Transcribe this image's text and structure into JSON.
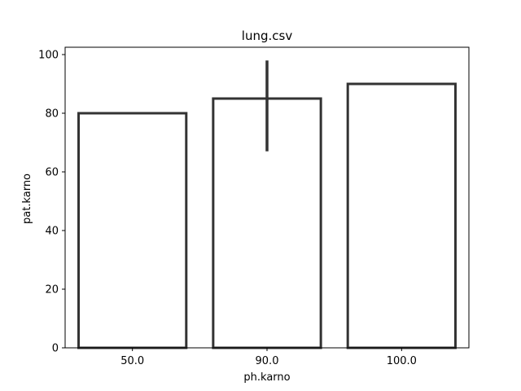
{
  "chart_data": {
    "type": "bar",
    "title": "lung.csv",
    "xlabel": "ph.karno",
    "ylabel": "pat.karno",
    "categories": [
      "50.0",
      "90.0",
      "100.0"
    ],
    "values": [
      80,
      85,
      90
    ],
    "error_low": [
      80,
      67,
      90
    ],
    "error_high": [
      80,
      98,
      90
    ],
    "ylim": [
      0,
      102.5
    ],
    "yticks": [
      0,
      20,
      40,
      60,
      80,
      100
    ],
    "grid": false,
    "bar_fill": "#ffffff",
    "bar_edge": "#333333"
  }
}
